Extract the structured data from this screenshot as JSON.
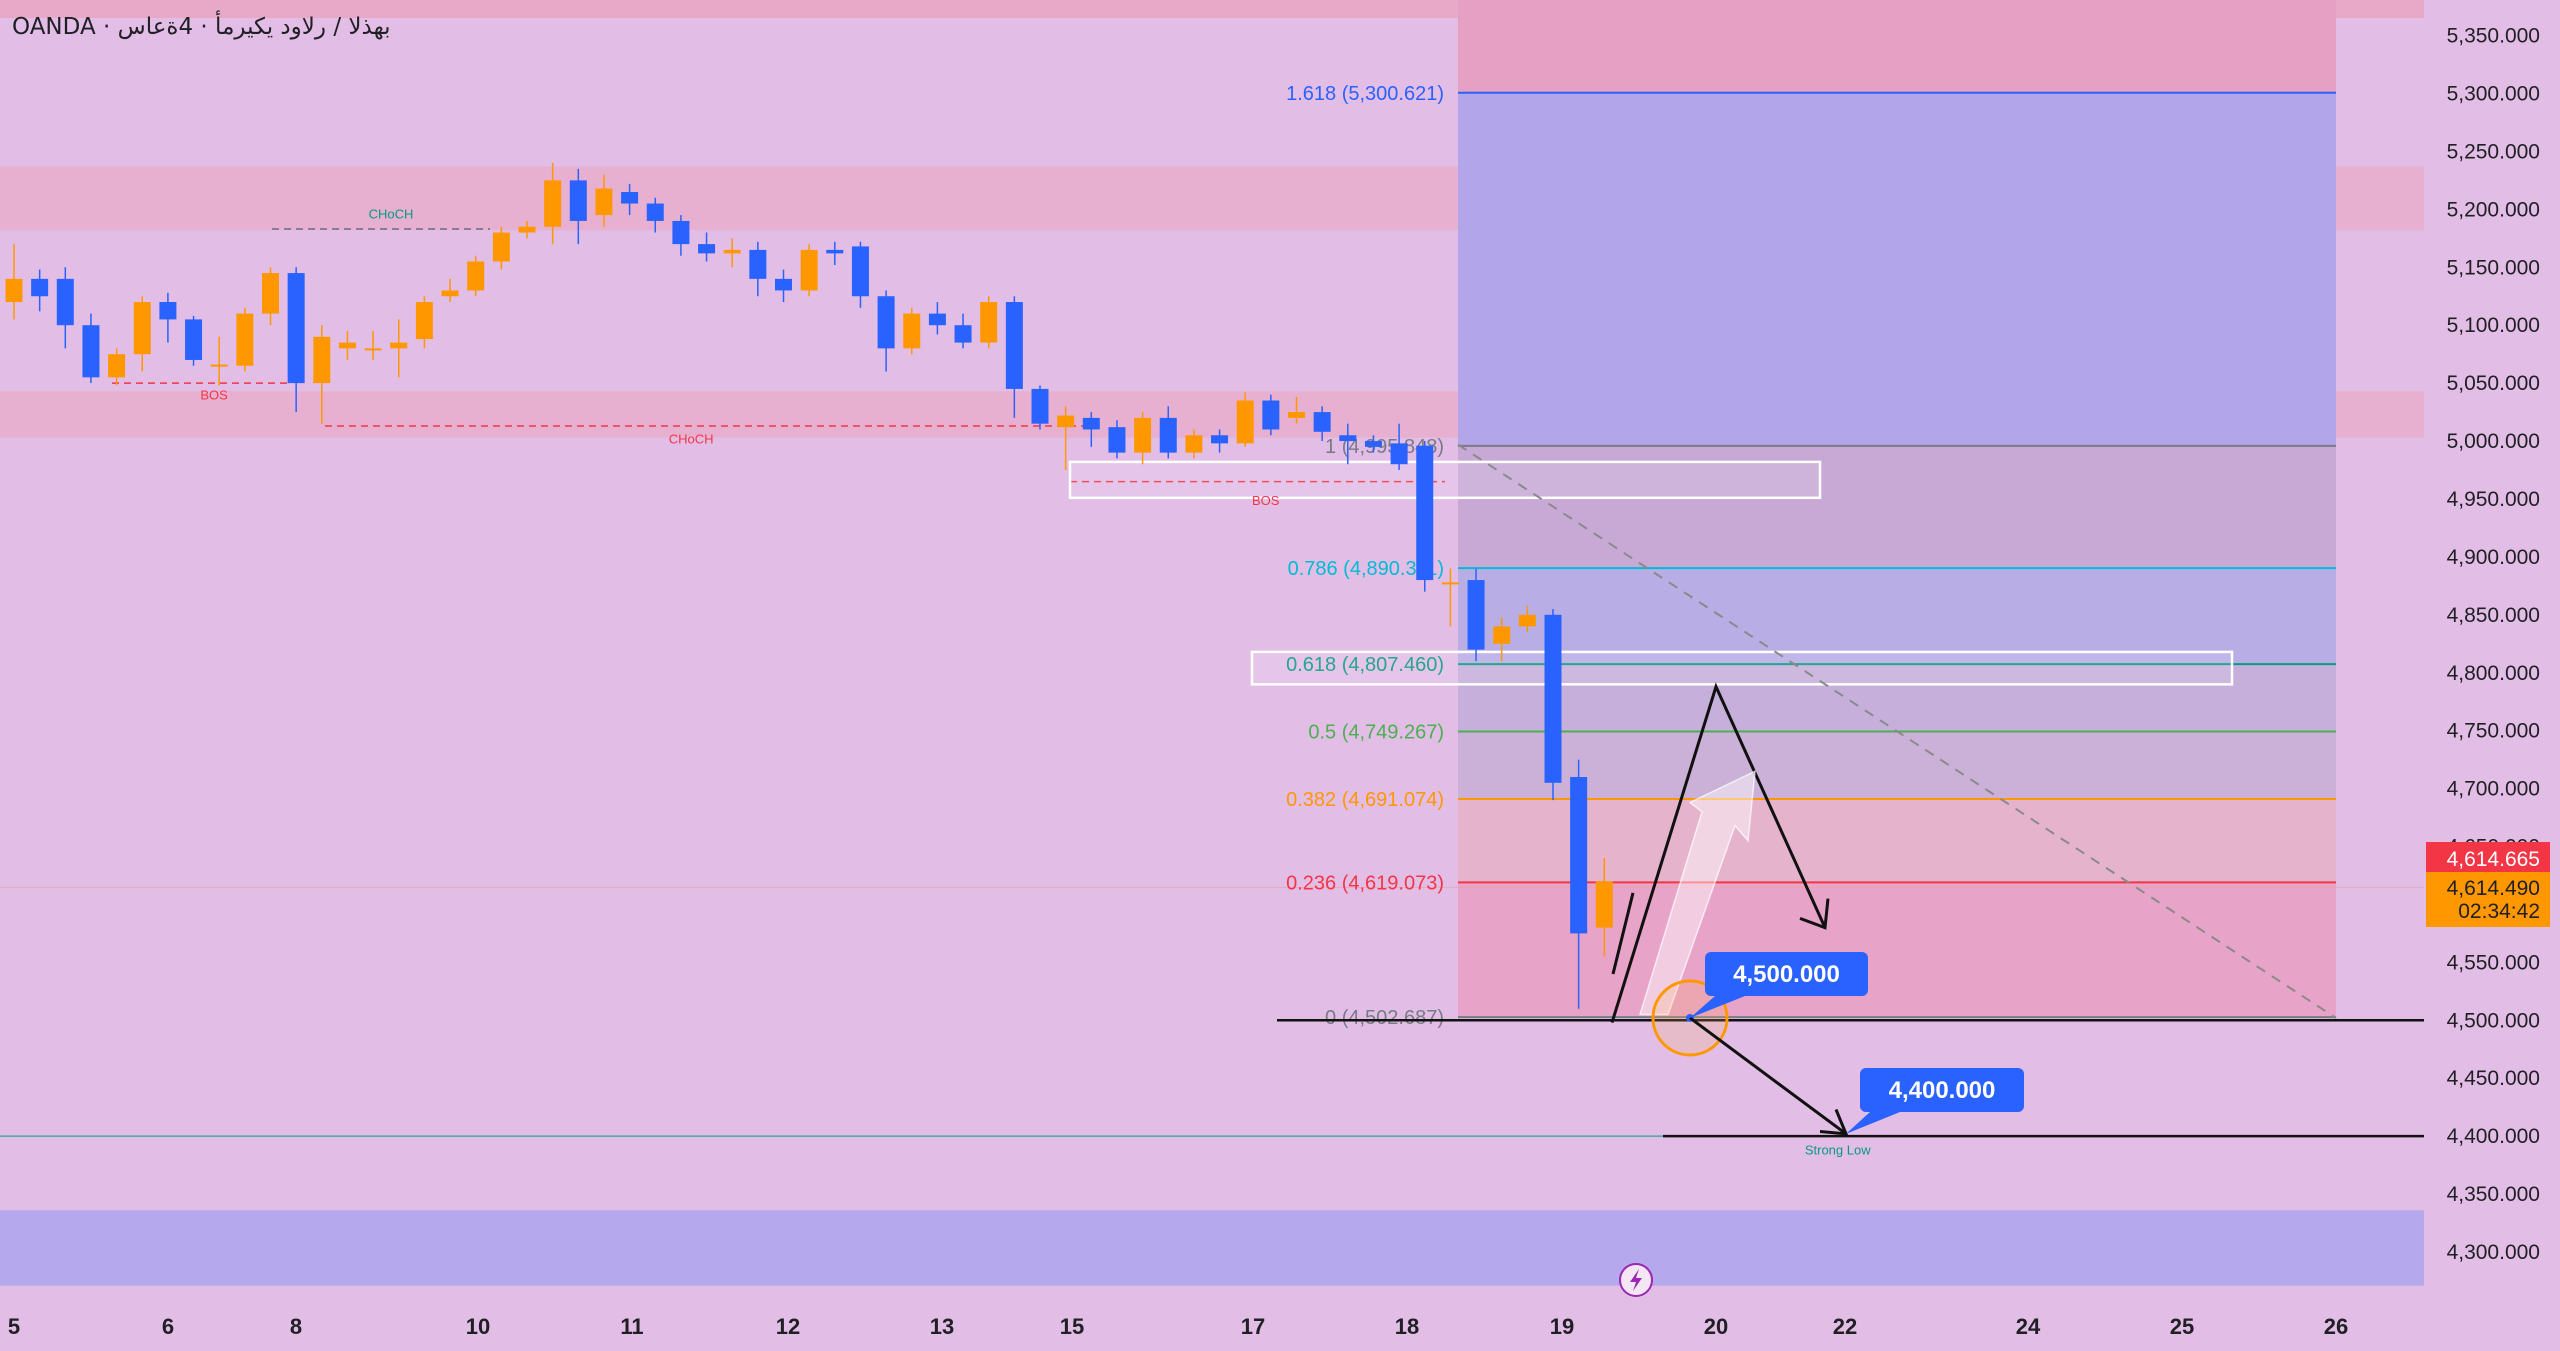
{
  "header": {
    "symbol": "OANDA · بهذلا / رلاود يكيرمأ · 4ةعاس"
  },
  "chart_data": {
    "type": "candlestick",
    "y_axis": {
      "ticks": [
        "5,350.000",
        "5,300.000",
        "5,250.000",
        "5,200.000",
        "5,150.000",
        "5,100.000",
        "5,050.000",
        "5,000.000",
        "4,950.000",
        "4,900.000",
        "4,850.000",
        "4,800.000",
        "4,750.000",
        "4,700.000",
        "4,650.000",
        "4,600.000",
        "4,550.000",
        "4,500.000",
        "4,450.000",
        "4,400.000",
        "4,350.000",
        "4,300.000"
      ],
      "tick_values": [
        5350,
        5300,
        5250,
        5200,
        5150,
        5100,
        5050,
        5000,
        4950,
        4900,
        4850,
        4800,
        4750,
        4700,
        4650,
        4600,
        4550,
        4500,
        4450,
        4400,
        4350,
        4300
      ],
      "range": [
        4265,
        5375
      ]
    },
    "x_axis": {
      "ticks": [
        "5",
        "6",
        "8",
        "10",
        "11",
        "12",
        "13",
        "15",
        "17",
        "18",
        "19",
        "20",
        "22",
        "24",
        "25",
        "26"
      ]
    },
    "price_labels": {
      "last": "4,614.665",
      "current": "4,614.490",
      "countdown": "02:34:42",
      "last_color": "#f23645",
      "current_color": "#ff9800"
    },
    "candles": [
      [
        5120,
        5140,
        5170,
        5105
      ],
      [
        5140,
        5125,
        5148,
        5112
      ],
      [
        5140,
        5100,
        5150,
        5080
      ],
      [
        5100,
        5055,
        5110,
        5050
      ],
      [
        5055,
        5075,
        5080,
        5048
      ],
      [
        5075,
        5120,
        5125,
        5060
      ],
      [
        5120,
        5105,
        5128,
        5085
      ],
      [
        5105,
        5070,
        5108,
        5065
      ],
      [
        5065,
        5066,
        5090,
        5048
      ],
      [
        5065,
        5110,
        5115,
        5060
      ],
      [
        5110,
        5145,
        5150,
        5100
      ],
      [
        5145,
        5050,
        5150,
        5025
      ],
      [
        5050,
        5090,
        5100,
        5015
      ],
      [
        5080,
        5085,
        5095,
        5070
      ],
      [
        5080,
        5080,
        5095,
        5070
      ],
      [
        5080,
        5085,
        5105,
        5055
      ],
      [
        5088,
        5120,
        5125,
        5080
      ],
      [
        5125,
        5130,
        5140,
        5120
      ],
      [
        5130,
        5155,
        5160,
        5125
      ],
      [
        5155,
        5180,
        5185,
        5148
      ],
      [
        5180,
        5185,
        5190,
        5175
      ],
      [
        5185,
        5225,
        5240,
        5170
      ],
      [
        5225,
        5190,
        5235,
        5170
      ],
      [
        5195,
        5218,
        5230,
        5185
      ],
      [
        5215,
        5205,
        5222,
        5195
      ],
      [
        5205,
        5190,
        5210,
        5180
      ],
      [
        5190,
        5170,
        5195,
        5160
      ],
      [
        5170,
        5162,
        5180,
        5155
      ],
      [
        5162,
        5165,
        5175,
        5150
      ],
      [
        5165,
        5140,
        5172,
        5125
      ],
      [
        5140,
        5130,
        5148,
        5120
      ],
      [
        5130,
        5165,
        5170,
        5125
      ],
      [
        5165,
        5162,
        5172,
        5152
      ],
      [
        5168,
        5125,
        5172,
        5115
      ],
      [
        5125,
        5080,
        5130,
        5060
      ],
      [
        5080,
        5110,
        5115,
        5075
      ],
      [
        5110,
        5100,
        5120,
        5092
      ],
      [
        5100,
        5085,
        5110,
        5080
      ],
      [
        5085,
        5120,
        5125,
        5080
      ],
      [
        5120,
        5045,
        5125,
        5020
      ],
      [
        5045,
        5015,
        5048,
        5010
      ],
      [
        5012,
        5022,
        5030,
        4975
      ],
      [
        5020,
        5010,
        5025,
        4995
      ],
      [
        5012,
        4990,
        5018,
        4985
      ],
      [
        4990,
        5020,
        5025,
        4980
      ],
      [
        5020,
        4990,
        5030,
        4985
      ],
      [
        4990,
        5005,
        5010,
        4985
      ],
      [
        5005,
        4998,
        5010,
        4990
      ],
      [
        4998,
        5035,
        5042,
        4995
      ],
      [
        5035,
        5010,
        5040,
        5005
      ],
      [
        5020,
        5025,
        5038,
        5015
      ],
      [
        5025,
        5008,
        5030,
        5000
      ],
      [
        5005,
        5000,
        5015,
        4980
      ],
      [
        5000,
        4995,
        5005,
        4990
      ],
      [
        4998,
        4980,
        5015,
        4975
      ],
      [
        4996,
        4880,
        5000,
        4870
      ],
      [
        4878,
        4878,
        4890,
        4840
      ],
      [
        4880,
        4820,
        4890,
        4810
      ],
      [
        4825,
        4840,
        4848,
        4810
      ],
      [
        4840,
        4850,
        4858,
        4835
      ],
      [
        4850,
        4705,
        4855,
        4690
      ],
      [
        4710,
        4575,
        4725,
        4510
      ],
      [
        4580,
        4620,
        4640,
        4555
      ]
    ],
    "fibonacci": {
      "levels": [
        {
          "ratio": "1.618",
          "value": "5,300.621",
          "color": "#2962ff",
          "price": 5300.621
        },
        {
          "ratio": "1",
          "value": "4,995.848",
          "color": "#787b86",
          "price": 4995.848
        },
        {
          "ratio": "0.786",
          "value": "4,890.311",
          "color": "#00bcd4",
          "price": 4890.311
        },
        {
          "ratio": "0.618",
          "value": "4,807.460",
          "color": "#089981",
          "price": 4807.46
        },
        {
          "ratio": "0.5",
          "value": "4,749.267",
          "color": "#4caf50",
          "price": 4749.267
        },
        {
          "ratio": "0.382",
          "value": "4,691.074",
          "color": "#ff9800",
          "price": 4691.074
        },
        {
          "ratio": "0.236",
          "value": "4,619.073",
          "color": "#f23645",
          "price": 4619.073
        },
        {
          "ratio": "0",
          "value": "4,502.687",
          "color": "#787b86",
          "price": 4502.687
        }
      ]
    },
    "annotations": {
      "labels": [
        {
          "text": "CHoCH",
          "color": "#089981",
          "price": 5192,
          "candle": 14.7
        },
        {
          "text": "BOS",
          "color": "#f23645",
          "price": 5036,
          "candle": 7.8
        },
        {
          "text": "CHoCH",
          "color": "#f23645",
          "price": 4998,
          "candle": 26.4
        },
        {
          "text": "BOS",
          "color": "#f23645",
          "price": 4945,
          "candle": 48.8
        },
        {
          "text": "Strong Low",
          "color": "#089981",
          "price": 4384,
          "candle": 71.1
        }
      ],
      "callouts": [
        {
          "text": "4,500.000",
          "price": 4500
        },
        {
          "text": "4,400.000",
          "price": 4400
        }
      ]
    },
    "grid": false,
    "legend": "none"
  }
}
